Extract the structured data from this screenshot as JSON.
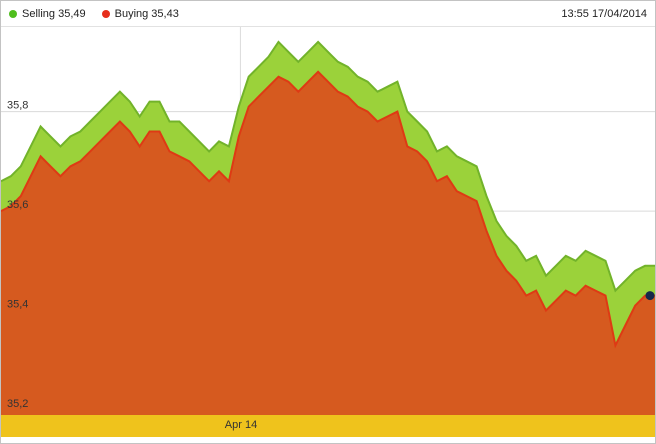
{
  "legend": {
    "selling": {
      "label": "Selling 35,49",
      "color": "#4fbe1d"
    },
    "buying": {
      "label": "Buying 35,43",
      "color": "#e62e1b"
    },
    "timestamp": "13:55 17/04/2014"
  },
  "chart_data": {
    "type": "area",
    "title": "",
    "xlabel": "Apr 14",
    "ylabel": "",
    "ylim": [
      35.19,
      35.97
    ],
    "grid": true,
    "legend_position": "top-left",
    "y_ticks": [
      {
        "value": 35.8,
        "label": "35,8"
      },
      {
        "value": 35.6,
        "label": "35,6"
      },
      {
        "value": 35.4,
        "label": "35,4"
      },
      {
        "value": 35.2,
        "label": "35,2"
      }
    ],
    "x_axis": {
      "label": "Apr 14",
      "position_frac": 0.366,
      "band_color": "#efc31c",
      "band_text_color": "#333333"
    },
    "gridline_color": "#dadada",
    "series": [
      {
        "name": "Selling",
        "current_value": "35,49",
        "fill": "#9bd23a",
        "line": "#72b32a",
        "values": [
          35.66,
          35.67,
          35.69,
          35.73,
          35.77,
          35.75,
          35.73,
          35.75,
          35.76,
          35.78,
          35.8,
          35.82,
          35.84,
          35.82,
          35.79,
          35.82,
          35.82,
          35.78,
          35.78,
          35.76,
          35.74,
          35.72,
          35.74,
          35.73,
          35.81,
          35.87,
          35.89,
          35.91,
          35.94,
          35.92,
          35.9,
          35.92,
          35.94,
          35.92,
          35.9,
          35.89,
          35.87,
          35.86,
          35.84,
          35.85,
          35.86,
          35.8,
          35.78,
          35.76,
          35.72,
          35.73,
          35.71,
          35.7,
          35.69,
          35.63,
          35.58,
          35.55,
          35.53,
          35.5,
          35.51,
          35.47,
          35.49,
          35.51,
          35.5,
          35.52,
          35.51,
          35.5,
          35.44,
          35.46,
          35.48,
          35.49,
          35.49
        ]
      },
      {
        "name": "Buying",
        "current_value": "35,43",
        "fill": "#d65a1f",
        "line": "#de3a14",
        "values": [
          35.6,
          35.61,
          35.63,
          35.67,
          35.71,
          35.69,
          35.67,
          35.69,
          35.7,
          35.72,
          35.74,
          35.76,
          35.78,
          35.76,
          35.73,
          35.76,
          35.76,
          35.72,
          35.71,
          35.7,
          35.68,
          35.66,
          35.68,
          35.66,
          35.75,
          35.81,
          35.83,
          35.85,
          35.87,
          35.86,
          35.84,
          35.86,
          35.88,
          35.86,
          35.84,
          35.83,
          35.81,
          35.8,
          35.78,
          35.79,
          35.8,
          35.73,
          35.72,
          35.7,
          35.66,
          35.67,
          35.64,
          35.63,
          35.62,
          35.56,
          35.51,
          35.48,
          35.46,
          35.43,
          35.44,
          35.4,
          35.42,
          35.44,
          35.43,
          35.45,
          35.44,
          35.43,
          35.33,
          35.37,
          35.41,
          35.43,
          35.43
        ]
      }
    ],
    "current_point_marker": {
      "series_index": 1,
      "color": "#16284a"
    }
  }
}
